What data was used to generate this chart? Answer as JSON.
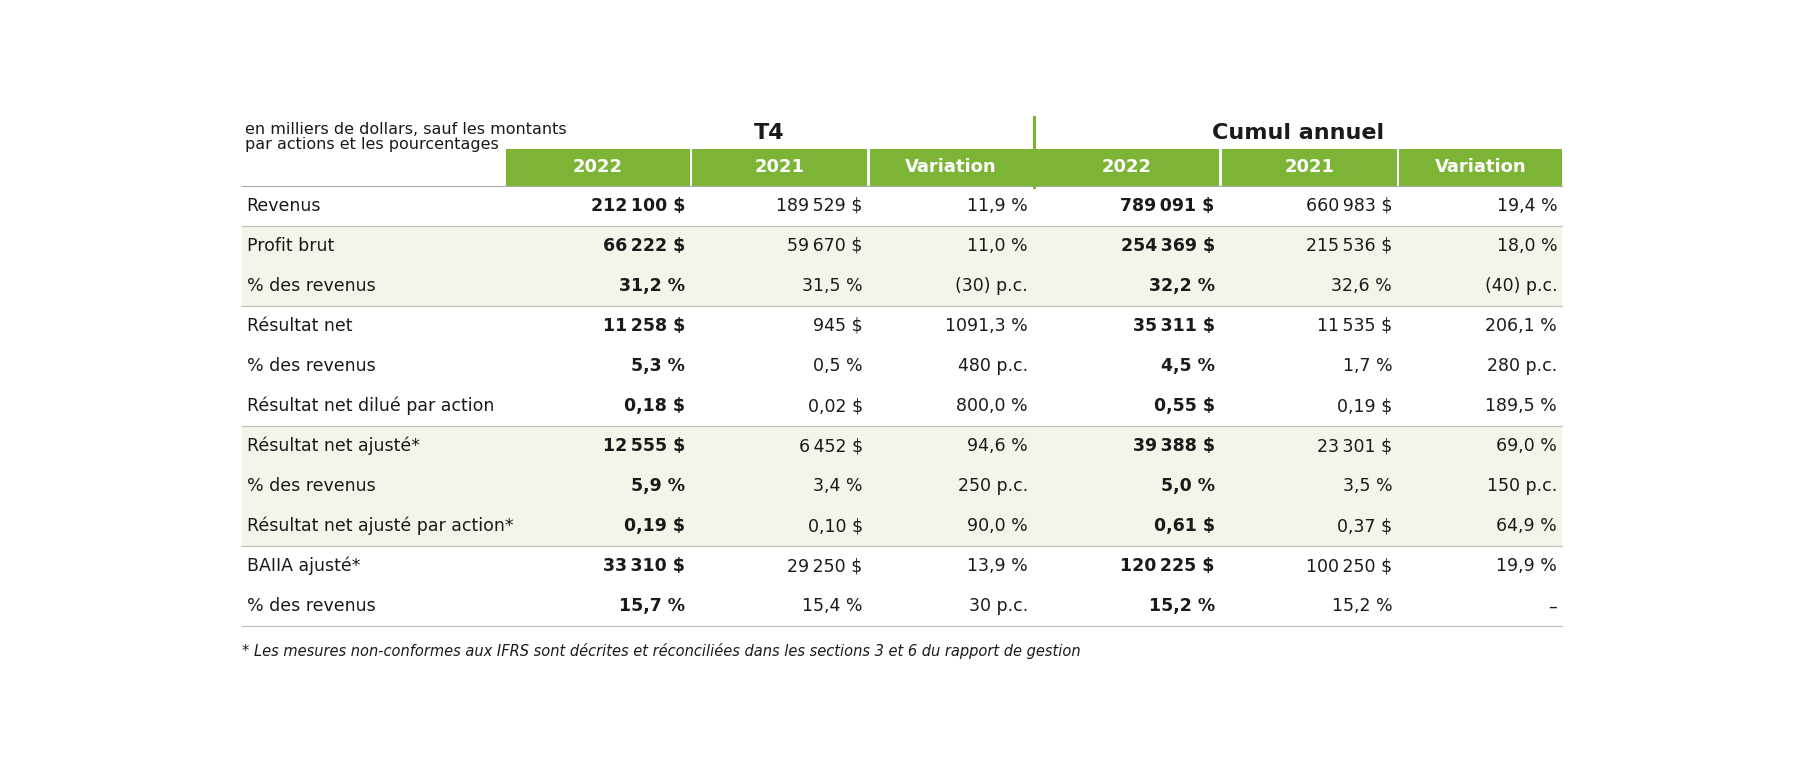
{
  "title_left": "T4",
  "title_right": "Cumul annuel",
  "header_note_line1": "en milliers de dollars, sauf les montants",
  "header_note_line2": "par actions et les pourcentages",
  "col_headers": [
    "2022",
    "2021",
    "Variation",
    "2022",
    "2021",
    "Variation"
  ],
  "green_color": "#7cb536",
  "light_green_bg": "#f1f6e8",
  "white_bg": "#ffffff",
  "header_text_color": "#ffffff",
  "body_text_color": "#1a1a1a",
  "separator_color": "#7cb536",
  "line_color": "#cccccc",
  "footnote": "* Les mesures non-conformes aux IFRS sont décrites et réconciliées dans les sections 3 et 6 du rapport de gestion",
  "rows": [
    {
      "label": "Revenus",
      "values": [
        "212 100 $",
        "189 529 $",
        "11,9 %",
        "789 091 $",
        "660 983 $",
        "19,4 %"
      ],
      "bold_values": [
        true,
        false,
        false,
        true,
        false,
        false
      ],
      "bg": "white",
      "separator_above": true
    },
    {
      "label": "Profit brut",
      "values": [
        "66 222 $",
        "59 670 $",
        "11,0 %",
        "254 369 $",
        "215 536 $",
        "18,0 %"
      ],
      "bold_values": [
        true,
        false,
        false,
        true,
        false,
        false
      ],
      "bg": "light",
      "separator_above": true
    },
    {
      "label": "% des revenus",
      "values": [
        "31,2 %",
        "31,5 %",
        "(30) p.c.",
        "32,2 %",
        "32,6 %",
        "(40) p.c."
      ],
      "bold_values": [
        true,
        false,
        false,
        true,
        false,
        false
      ],
      "bg": "light",
      "separator_above": false
    },
    {
      "label": "Résultat net",
      "values": [
        "11 258 $",
        "945 $",
        "1091,3 %",
        "35 311 $",
        "11 535 $",
        "206,1 %"
      ],
      "bold_values": [
        true,
        false,
        false,
        true,
        false,
        false
      ],
      "bg": "white",
      "separator_above": true
    },
    {
      "label": "% des revenus",
      "values": [
        "5,3 %",
        "0,5 %",
        "480 p.c.",
        "4,5 %",
        "1,7 %",
        "280 p.c."
      ],
      "bold_values": [
        true,
        false,
        false,
        true,
        false,
        false
      ],
      "bg": "white",
      "separator_above": false
    },
    {
      "label": "Résultat net dilué par action",
      "values": [
        "0,18 $",
        "0,02 $",
        "800,0 %",
        "0,55 $",
        "0,19 $",
        "189,5 %"
      ],
      "bold_values": [
        true,
        false,
        false,
        true,
        false,
        false
      ],
      "bg": "white",
      "separator_above": false
    },
    {
      "label": "Résultat net ajusté*",
      "values": [
        "12 555 $",
        "6 452 $",
        "94,6 %",
        "39 388 $",
        "23 301 $",
        "69,0 %"
      ],
      "bold_values": [
        true,
        false,
        false,
        true,
        false,
        false
      ],
      "bg": "light",
      "separator_above": true
    },
    {
      "label": "% des revenus",
      "values": [
        "5,9 %",
        "3,4 %",
        "250 p.c.",
        "5,0 %",
        "3,5 %",
        "150 p.c."
      ],
      "bold_values": [
        true,
        false,
        false,
        true,
        false,
        false
      ],
      "bg": "light",
      "separator_above": false
    },
    {
      "label": "Résultat net ajusté par action*",
      "values": [
        "0,19 $",
        "0,10 $",
        "90,0 %",
        "0,61 $",
        "0,37 $",
        "64,9 %"
      ],
      "bold_values": [
        true,
        false,
        false,
        true,
        false,
        false
      ],
      "bg": "light",
      "separator_above": false
    },
    {
      "label": "BAIIA ajusté*",
      "values": [
        "33 310 $",
        "29 250 $",
        "13,9 %",
        "120 225 $",
        "100 250 $",
        "19,9 %"
      ],
      "bold_values": [
        true,
        false,
        false,
        true,
        false,
        false
      ],
      "bg": "white",
      "separator_above": true
    },
    {
      "label": "% des revenus",
      "values": [
        "15,7 %",
        "15,4 %",
        "30 p.c.",
        "15,2 %",
        "15,2 %",
        "–"
      ],
      "bold_values": [
        true,
        false,
        false,
        true,
        false,
        false
      ],
      "bg": "white",
      "separator_above": false
    }
  ]
}
